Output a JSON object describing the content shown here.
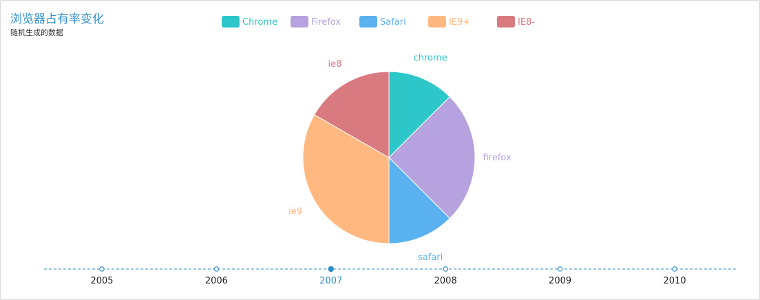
{
  "chart_data": {
    "type": "pie",
    "title": "浏览器占有率变化",
    "subtitle": "随机生成的数据",
    "legend": [
      "Chrome",
      "Firefox",
      "Safari",
      "IE9+",
      "IE8-"
    ],
    "slices": [
      {
        "label": "chrome",
        "value": 12.5
      },
      {
        "label": "firefox",
        "value": 25
      },
      {
        "label": "safari",
        "value": 12.5
      },
      {
        "label": "ie9",
        "value": 33.3
      },
      {
        "label": "ie8",
        "value": 16.7
      }
    ],
    "timeline": {
      "years": [
        "2005",
        "2006",
        "2007",
        "2008",
        "2009",
        "2010"
      ],
      "current": "2007"
    }
  },
  "colors": {
    "chrome": "#2ec7c9",
    "firefox": "#b6a2de",
    "safari": "#5ab1ef",
    "ie9": "#ffb980",
    "ie8": "#d87a80",
    "timeline": "#2f8fc6",
    "title": "#2f8fc6"
  }
}
